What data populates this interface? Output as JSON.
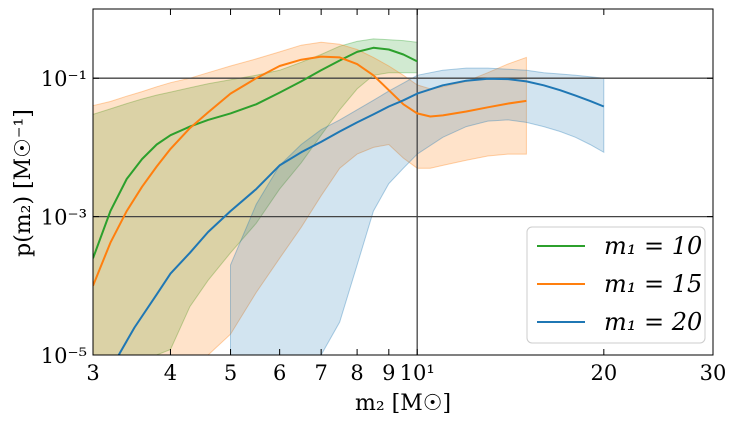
{
  "chart_data": {
    "type": "line",
    "xscale": "log",
    "yscale": "log",
    "xlim": [
      3,
      30
    ],
    "ylim": [
      1e-05,
      1.0
    ],
    "xlabel": "m₂ [M☉]",
    "ylabel": "p(m₂) [M☉⁻¹]",
    "x_ticks": [
      {
        "value": 3,
        "label": "3"
      },
      {
        "value": 4,
        "label": "4"
      },
      {
        "value": 5,
        "label": "5"
      },
      {
        "value": 6,
        "label": "6"
      },
      {
        "value": 7,
        "label": "7"
      },
      {
        "value": 8,
        "label": "8"
      },
      {
        "value": 9,
        "label": "9"
      },
      {
        "value": 10,
        "label": "10¹"
      },
      {
        "value": 20,
        "label": "20"
      },
      {
        "value": 30,
        "label": "30"
      }
    ],
    "y_ticks": [
      {
        "value": 1e-05,
        "label": "10⁻⁵"
      },
      {
        "value": 0.001,
        "label": "10⁻³"
      },
      {
        "value": 0.1,
        "label": "10⁻¹"
      }
    ],
    "reference_lines": {
      "x": [
        10
      ],
      "y": [
        0.1,
        0.001
      ]
    },
    "legend_position": "lower-right",
    "series": [
      {
        "name": "m₁ = 10",
        "color": "#2ca02c",
        "fill": "#2ca02c",
        "fill_alpha": 0.22,
        "x": [
          3.0,
          3.2,
          3.4,
          3.6,
          3.8,
          4.0,
          4.3,
          4.6,
          5.0,
          5.5,
          6.0,
          6.5,
          7.0,
          7.5,
          8.0,
          8.5,
          9.0,
          9.5,
          10.0
        ],
        "y": [
          0.00025,
          0.0012,
          0.0035,
          0.0068,
          0.011,
          0.015,
          0.02,
          0.025,
          0.031,
          0.042,
          0.062,
          0.09,
          0.13,
          0.18,
          0.24,
          0.275,
          0.26,
          0.22,
          0.175
        ],
        "lower": [
          1e-05,
          1e-05,
          1e-05,
          1e-05,
          1e-05,
          1.2e-05,
          5e-05,
          0.00012,
          0.0003,
          0.0008,
          0.0025,
          0.006,
          0.015,
          0.035,
          0.07,
          0.11,
          0.12,
          0.12,
          0.12
        ],
        "upper": [
          0.03,
          0.036,
          0.043,
          0.05,
          0.057,
          0.063,
          0.073,
          0.083,
          0.095,
          0.11,
          0.13,
          0.17,
          0.22,
          0.29,
          0.34,
          0.37,
          0.36,
          0.35,
          0.33
        ]
      },
      {
        "name": "m₁ = 15",
        "color": "#ff7f0e",
        "fill": "#ff7f0e",
        "fill_alpha": 0.22,
        "x": [
          3.0,
          3.2,
          3.4,
          3.6,
          3.8,
          4.0,
          4.3,
          4.6,
          5.0,
          5.5,
          6.0,
          6.5,
          7.0,
          7.5,
          8.0,
          8.5,
          9.0,
          9.5,
          10.0,
          10.5,
          11.0,
          12.0,
          13.0,
          14.0,
          15.0
        ],
        "y": [
          0.0001,
          0.00042,
          0.0012,
          0.0027,
          0.0053,
          0.0095,
          0.019,
          0.032,
          0.06,
          0.1,
          0.15,
          0.185,
          0.205,
          0.2,
          0.16,
          0.11,
          0.067,
          0.042,
          0.031,
          0.028,
          0.029,
          0.033,
          0.038,
          0.043,
          0.047
        ],
        "lower": [
          1e-05,
          1e-05,
          1e-05,
          1e-05,
          1e-05,
          1e-05,
          1e-05,
          1e-05,
          2e-05,
          8e-05,
          0.00025,
          0.0007,
          0.002,
          0.005,
          0.008,
          0.01,
          0.011,
          0.007,
          0.005,
          0.005,
          0.0055,
          0.0065,
          0.0075,
          0.008,
          0.008
        ],
        "upper": [
          0.04,
          0.046,
          0.055,
          0.064,
          0.075,
          0.086,
          0.1,
          0.12,
          0.15,
          0.19,
          0.24,
          0.3,
          0.33,
          0.31,
          0.26,
          0.2,
          0.15,
          0.11,
          0.08,
          0.07,
          0.075,
          0.09,
          0.12,
          0.16,
          0.2
        ]
      },
      {
        "name": "m₁ = 20",
        "color": "#1f77b4",
        "fill": "#1f77b4",
        "fill_alpha": 0.2,
        "x": [
          3.3,
          3.5,
          3.8,
          4.0,
          4.3,
          4.6,
          5.0,
          5.5,
          6.0,
          6.5,
          7.0,
          7.5,
          8.0,
          8.5,
          9.0,
          9.5,
          10.0,
          11.0,
          12.0,
          13.0,
          14.0,
          15.0,
          16.0,
          17.0,
          18.0,
          19.0,
          20.0
        ],
        "y": [
          1e-05,
          2.5e-05,
          7.5e-05,
          0.00015,
          0.0003,
          0.0006,
          0.0012,
          0.0025,
          0.0055,
          0.0085,
          0.012,
          0.017,
          0.023,
          0.03,
          0.039,
          0.048,
          0.06,
          0.079,
          0.092,
          0.098,
          0.097,
          0.09,
          0.079,
          0.067,
          0.056,
          0.047,
          0.039
        ],
        "lower": [
          null,
          null,
          null,
          null,
          null,
          null,
          1e-05,
          1e-05,
          1e-05,
          1e-05,
          1e-05,
          3e-05,
          0.0002,
          0.0012,
          0.003,
          0.005,
          0.008,
          0.014,
          0.02,
          0.024,
          0.025,
          0.023,
          0.02,
          0.017,
          0.014,
          0.011,
          0.0085
        ],
        "upper": [
          null,
          null,
          null,
          null,
          null,
          1e-05,
          0.0002,
          0.0015,
          0.0055,
          0.011,
          0.018,
          0.025,
          0.035,
          0.048,
          0.065,
          0.085,
          0.11,
          0.13,
          0.14,
          0.14,
          0.135,
          0.13,
          0.12,
          0.115,
          0.11,
          0.105,
          0.1
        ]
      }
    ]
  }
}
